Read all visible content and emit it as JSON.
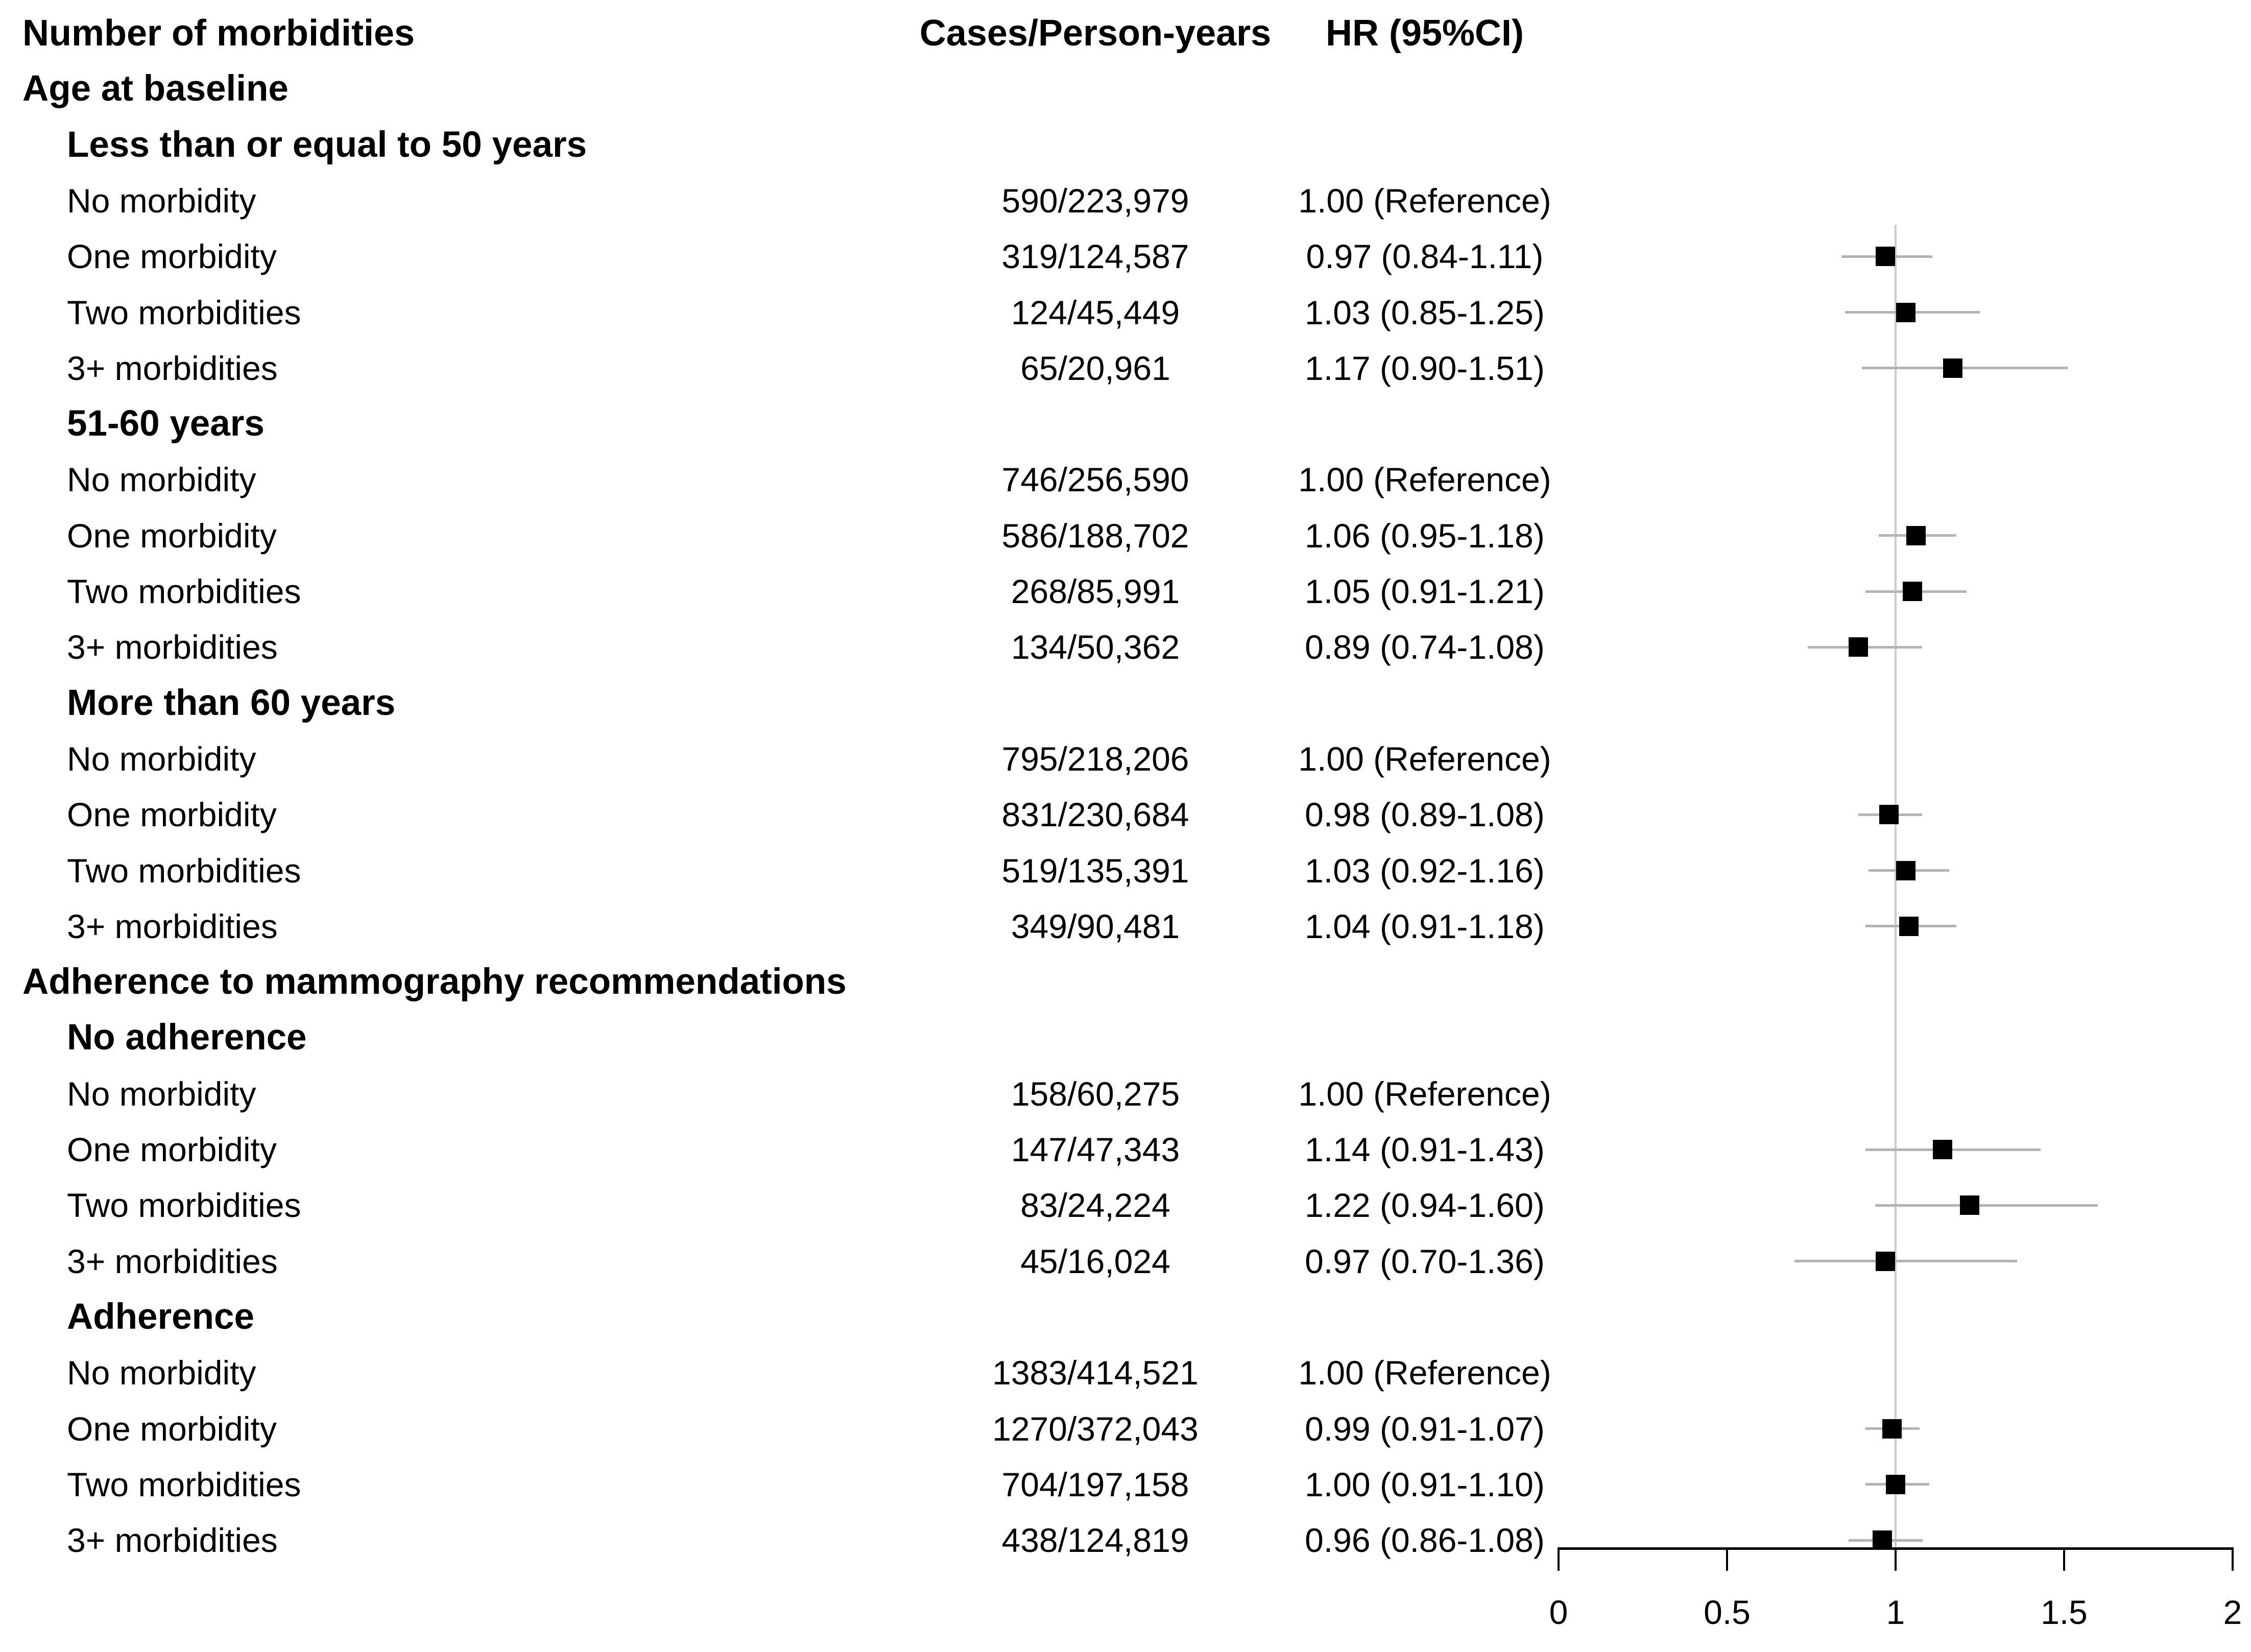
{
  "figure": {
    "columns": {
      "label": "Number of morbidities",
      "cases": "Cases/Person-years",
      "hr": "HR (95%CI)"
    }
  },
  "axis": {
    "tick_labels": [
      "0",
      "0.5",
      "1",
      "1.5",
      "2"
    ],
    "tick_values": [
      0,
      0.5,
      1,
      1.5,
      2
    ]
  },
  "colors": {
    "marker": "#000000",
    "ci_line": "#b3b3b3",
    "reference_line": "#cccccc",
    "axis": "#000000",
    "text": "#000000",
    "background": "#ffffff"
  },
  "chart_data": {
    "type": "scatter",
    "variant": "forest-plot",
    "title": "",
    "columns": [
      "Number of morbidities",
      "Cases/Person-years",
      "HR (95%CI)"
    ],
    "xlabel": "",
    "xlim": [
      0,
      2
    ],
    "x_ticks": [
      0,
      0.5,
      1,
      1.5,
      2
    ],
    "reference_line_x": 1,
    "legend": "none",
    "grid": "off",
    "sections": [
      {
        "title": "Age at baseline",
        "subgroups": [
          {
            "title": "Less than or equal to 50 years",
            "rows": [
              {
                "label": "No morbidity",
                "cases": "590/223,979",
                "hr_text": "1.00 (Reference)",
                "hr": 1.0,
                "ci_low": null,
                "ci_high": null,
                "reference": true
              },
              {
                "label": "One morbidity",
                "cases": "319/124,587",
                "hr_text": "0.97 (0.84-1.11)",
                "hr": 0.97,
                "ci_low": 0.84,
                "ci_high": 1.11,
                "reference": false
              },
              {
                "label": "Two morbidities",
                "cases": "124/45,449",
                "hr_text": "1.03 (0.85-1.25)",
                "hr": 1.03,
                "ci_low": 0.85,
                "ci_high": 1.25,
                "reference": false
              },
              {
                "label": "3+ morbidities",
                "cases": "65/20,961",
                "hr_text": "1.17 (0.90-1.51)",
                "hr": 1.17,
                "ci_low": 0.9,
                "ci_high": 1.51,
                "reference": false
              }
            ]
          },
          {
            "title": "51-60 years",
            "rows": [
              {
                "label": "No morbidity",
                "cases": "746/256,590",
                "hr_text": "1.00 (Reference)",
                "hr": 1.0,
                "ci_low": null,
                "ci_high": null,
                "reference": true
              },
              {
                "label": "One morbidity",
                "cases": "586/188,702",
                "hr_text": "1.06 (0.95-1.18)",
                "hr": 1.06,
                "ci_low": 0.95,
                "ci_high": 1.18,
                "reference": false
              },
              {
                "label": "Two morbidities",
                "cases": "268/85,991",
                "hr_text": "1.05 (0.91-1.21)",
                "hr": 1.05,
                "ci_low": 0.91,
                "ci_high": 1.21,
                "reference": false
              },
              {
                "label": "3+ morbidities",
                "cases": "134/50,362",
                "hr_text": "0.89 (0.74-1.08)",
                "hr": 0.89,
                "ci_low": 0.74,
                "ci_high": 1.08,
                "reference": false
              }
            ]
          },
          {
            "title": "More than 60 years",
            "rows": [
              {
                "label": "No morbidity",
                "cases": "795/218,206",
                "hr_text": "1.00 (Reference)",
                "hr": 1.0,
                "ci_low": null,
                "ci_high": null,
                "reference": true
              },
              {
                "label": "One morbidity",
                "cases": "831/230,684",
                "hr_text": "0.98 (0.89-1.08)",
                "hr": 0.98,
                "ci_low": 0.89,
                "ci_high": 1.08,
                "reference": false
              },
              {
                "label": "Two morbidities",
                "cases": "519/135,391",
                "hr_text": "1.03 (0.92-1.16)",
                "hr": 1.03,
                "ci_low": 0.92,
                "ci_high": 1.16,
                "reference": false
              },
              {
                "label": "3+ morbidities",
                "cases": "349/90,481",
                "hr_text": "1.04 (0.91-1.18)",
                "hr": 1.04,
                "ci_low": 0.91,
                "ci_high": 1.18,
                "reference": false
              }
            ]
          }
        ]
      },
      {
        "title": "Adherence to mammography recommendations",
        "subgroups": [
          {
            "title": "No adherence",
            "rows": [
              {
                "label": "No morbidity",
                "cases": "158/60,275",
                "hr_text": "1.00 (Reference)",
                "hr": 1.0,
                "ci_low": null,
                "ci_high": null,
                "reference": true
              },
              {
                "label": "One morbidity",
                "cases": "147/47,343",
                "hr_text": "1.14 (0.91-1.43)",
                "hr": 1.14,
                "ci_low": 0.91,
                "ci_high": 1.43,
                "reference": false
              },
              {
                "label": "Two morbidities",
                "cases": "83/24,224",
                "hr_text": "1.22 (0.94-1.60)",
                "hr": 1.22,
                "ci_low": 0.94,
                "ci_high": 1.6,
                "reference": false
              },
              {
                "label": "3+ morbidities",
                "cases": "45/16,024",
                "hr_text": "0.97 (0.70-1.36)",
                "hr": 0.97,
                "ci_low": 0.7,
                "ci_high": 1.36,
                "reference": false
              }
            ]
          },
          {
            "title": "Adherence",
            "rows": [
              {
                "label": "No morbidity",
                "cases": "1383/414,521",
                "hr_text": "1.00 (Reference)",
                "hr": 1.0,
                "ci_low": null,
                "ci_high": null,
                "reference": true
              },
              {
                "label": "One morbidity",
                "cases": "1270/372,043",
                "hr_text": "0.99 (0.91-1.07)",
                "hr": 0.99,
                "ci_low": 0.91,
                "ci_high": 1.07,
                "reference": false
              },
              {
                "label": "Two morbidities",
                "cases": "704/197,158",
                "hr_text": "1.00 (0.91-1.10)",
                "hr": 1.0,
                "ci_low": 0.91,
                "ci_high": 1.1,
                "reference": false
              },
              {
                "label": "3+ morbidities",
                "cases": "438/124,819",
                "hr_text": "0.96 (0.86-1.08)",
                "hr": 0.96,
                "ci_low": 0.86,
                "ci_high": 1.08,
                "reference": false
              }
            ]
          }
        ]
      }
    ]
  }
}
